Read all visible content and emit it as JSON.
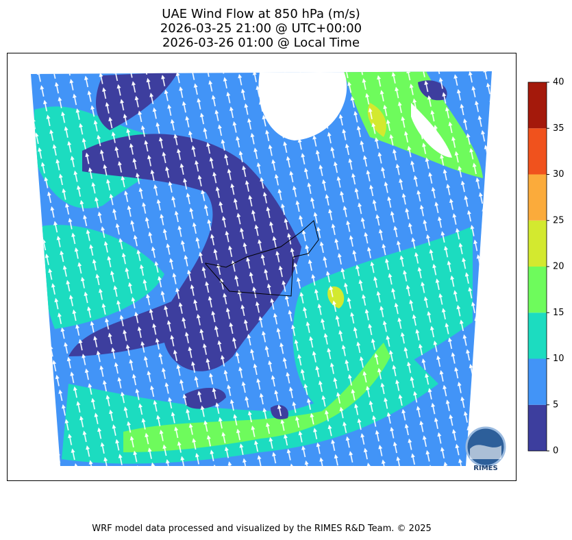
{
  "title": [
    "UAE Wind Flow at 850 hPa (m/s)",
    "2026-03-25 21:00 @ UTC+00:00",
    "2026-03-26 01:00 @ Local Time"
  ],
  "colorbar": {
    "lim": [
      0,
      40
    ],
    "ticks": [
      0,
      5,
      10,
      15,
      20,
      25,
      30,
      35,
      40
    ],
    "colors": [
      "#3d3e9e",
      "#4294f7",
      "#1cdcc0",
      "#6efb5c",
      "#d3e92f",
      "#fbab3b",
      "#f0521d",
      "#a4190b"
    ]
  },
  "logo": "RIMES",
  "footer": "WRF model data processed and visualized by the RIMES R&D Team. © 2025"
}
